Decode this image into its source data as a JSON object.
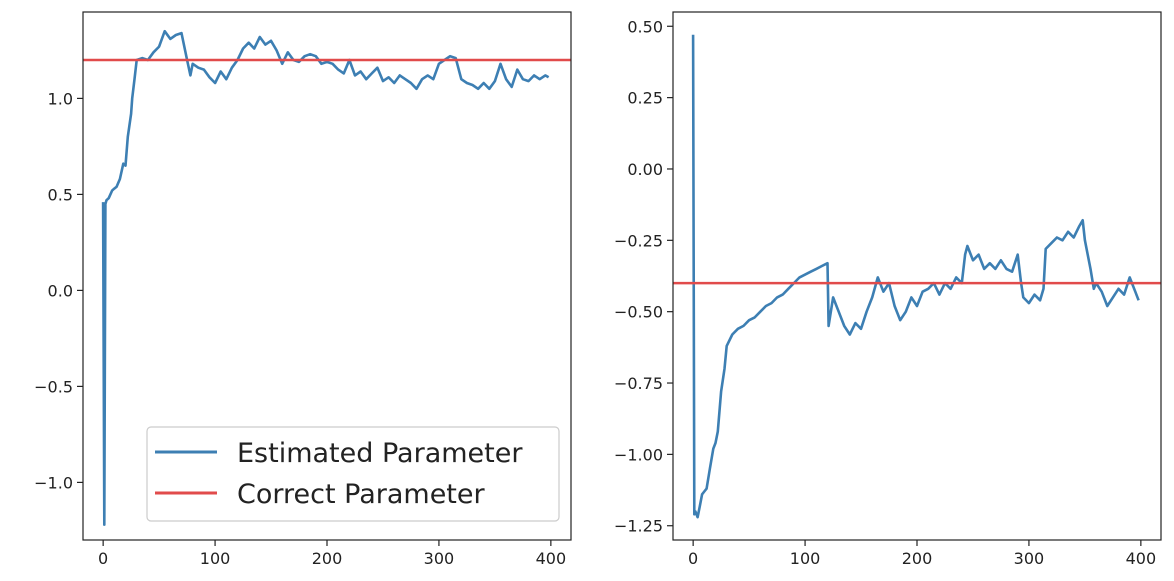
{
  "colors": {
    "estimated": "#3d7fb3",
    "correct": "#e14b4b",
    "axes": "#222222",
    "legend_border": "#cccccc"
  },
  "legend": {
    "placement": "lower-right",
    "entries": [
      "Estimated Parameter",
      "Correct Parameter"
    ]
  },
  "chart_data": [
    {
      "type": "line",
      "panel": "left",
      "xlim": [
        -18,
        418
      ],
      "ylim": [
        -1.3,
        1.45
      ],
      "xticks": [
        0,
        100,
        200,
        300,
        400
      ],
      "xtick_labels": [
        "0",
        "100",
        "200",
        "300",
        "400"
      ],
      "yticks": [
        -1.0,
        -0.5,
        0.0,
        0.5,
        1.0
      ],
      "ytick_labels": [
        "−1.0",
        "−0.5",
        "0.0",
        "0.5",
        "1.0"
      ],
      "grid": false,
      "legend": "lower-right",
      "series": [
        {
          "name": "Estimated Parameter",
          "x": [
            0,
            1,
            2,
            3,
            5,
            8,
            10,
            12,
            15,
            18,
            20,
            22,
            25,
            26,
            28,
            30,
            35,
            40,
            45,
            50,
            55,
            60,
            65,
            70,
            75,
            78,
            80,
            85,
            90,
            95,
            100,
            105,
            110,
            115,
            120,
            125,
            130,
            135,
            140,
            145,
            150,
            155,
            160,
            165,
            170,
            175,
            180,
            185,
            190,
            195,
            200,
            205,
            210,
            215,
            220,
            225,
            230,
            235,
            240,
            245,
            250,
            255,
            260,
            265,
            270,
            275,
            280,
            285,
            290,
            295,
            300,
            305,
            310,
            315,
            320,
            325,
            330,
            335,
            340,
            345,
            350,
            355,
            360,
            365,
            370,
            375,
            380,
            385,
            390,
            395,
            398
          ],
          "values": [
            0.46,
            -1.22,
            0.45,
            0.47,
            0.48,
            0.52,
            0.53,
            0.54,
            0.58,
            0.66,
            0.65,
            0.8,
            0.92,
            1.0,
            1.1,
            1.2,
            1.21,
            1.2,
            1.24,
            1.27,
            1.35,
            1.31,
            1.33,
            1.34,
            1.2,
            1.12,
            1.18,
            1.16,
            1.15,
            1.11,
            1.08,
            1.14,
            1.1,
            1.16,
            1.2,
            1.26,
            1.29,
            1.26,
            1.32,
            1.28,
            1.3,
            1.25,
            1.18,
            1.24,
            1.2,
            1.19,
            1.22,
            1.23,
            1.22,
            1.18,
            1.19,
            1.18,
            1.15,
            1.13,
            1.2,
            1.12,
            1.14,
            1.1,
            1.13,
            1.16,
            1.09,
            1.11,
            1.08,
            1.12,
            1.1,
            1.08,
            1.05,
            1.1,
            1.12,
            1.1,
            1.18,
            1.2,
            1.22,
            1.21,
            1.1,
            1.08,
            1.07,
            1.05,
            1.08,
            1.05,
            1.09,
            1.18,
            1.1,
            1.06,
            1.15,
            1.1,
            1.09,
            1.12,
            1.1,
            1.12,
            1.11
          ]
        },
        {
          "name": "Correct Parameter",
          "y_constant": 1.2
        }
      ]
    },
    {
      "type": "line",
      "panel": "right",
      "xlim": [
        -18,
        418
      ],
      "ylim": [
        -1.3,
        0.55
      ],
      "xticks": [
        0,
        100,
        200,
        300,
        400
      ],
      "xtick_labels": [
        "0",
        "100",
        "200",
        "300",
        "400"
      ],
      "yticks": [
        -1.25,
        -1.0,
        -0.75,
        -0.5,
        -0.25,
        0.0,
        0.25,
        0.5
      ],
      "ytick_labels": [
        "−1.25",
        "−1.00",
        "−0.75",
        "−0.50",
        "−0.25",
        "0.00",
        "0.25",
        "0.50"
      ],
      "grid": false,
      "series": [
        {
          "name": "Estimated Parameter",
          "x": [
            0,
            1,
            2,
            4,
            6,
            8,
            10,
            12,
            15,
            18,
            20,
            22,
            25,
            28,
            30,
            35,
            40,
            45,
            50,
            55,
            60,
            65,
            70,
            75,
            80,
            85,
            90,
            95,
            100,
            105,
            110,
            115,
            120,
            121,
            125,
            130,
            135,
            140,
            145,
            150,
            155,
            160,
            165,
            170,
            175,
            180,
            185,
            190,
            195,
            200,
            205,
            210,
            215,
            220,
            225,
            230,
            235,
            240,
            243,
            245,
            250,
            255,
            260,
            265,
            270,
            275,
            280,
            285,
            290,
            293,
            295,
            300,
            305,
            310,
            313,
            315,
            320,
            325,
            330,
            335,
            340,
            345,
            348,
            350,
            355,
            358,
            360,
            365,
            370,
            375,
            380,
            385,
            390,
            395,
            398
          ],
          "values": [
            0.47,
            -1.21,
            -1.2,
            -1.22,
            -1.18,
            -1.14,
            -1.13,
            -1.12,
            -1.05,
            -0.98,
            -0.96,
            -0.92,
            -0.78,
            -0.7,
            -0.62,
            -0.58,
            -0.56,
            -0.55,
            -0.53,
            -0.52,
            -0.5,
            -0.48,
            -0.47,
            -0.45,
            -0.44,
            -0.42,
            -0.4,
            -0.38,
            -0.37,
            -0.36,
            -0.35,
            -0.34,
            -0.33,
            -0.55,
            -0.45,
            -0.5,
            -0.55,
            -0.58,
            -0.54,
            -0.56,
            -0.5,
            -0.45,
            -0.38,
            -0.43,
            -0.4,
            -0.48,
            -0.53,
            -0.5,
            -0.45,
            -0.48,
            -0.43,
            -0.42,
            -0.4,
            -0.44,
            -0.4,
            -0.42,
            -0.38,
            -0.4,
            -0.3,
            -0.27,
            -0.32,
            -0.3,
            -0.35,
            -0.33,
            -0.35,
            -0.32,
            -0.35,
            -0.36,
            -0.3,
            -0.4,
            -0.45,
            -0.47,
            -0.44,
            -0.46,
            -0.42,
            -0.28,
            -0.26,
            -0.24,
            -0.25,
            -0.22,
            -0.24,
            -0.2,
            -0.18,
            -0.25,
            -0.35,
            -0.42,
            -0.4,
            -0.43,
            -0.48,
            -0.45,
            -0.42,
            -0.44,
            -0.38,
            -0.43,
            -0.46
          ]
        },
        {
          "name": "Correct Parameter",
          "y_constant": -0.4
        }
      ]
    }
  ]
}
